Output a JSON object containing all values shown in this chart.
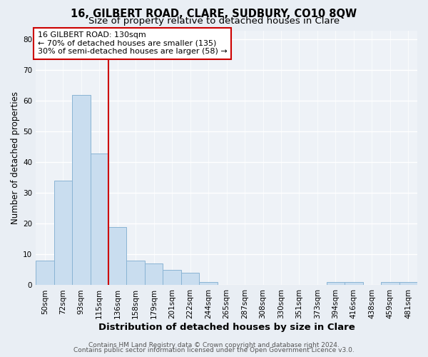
{
  "title": "16, GILBERT ROAD, CLARE, SUDBURY, CO10 8QW",
  "subtitle": "Size of property relative to detached houses in Clare",
  "xlabel": "Distribution of detached houses by size in Clare",
  "ylabel": "Number of detached properties",
  "bar_labels": [
    "50sqm",
    "72sqm",
    "93sqm",
    "115sqm",
    "136sqm",
    "158sqm",
    "179sqm",
    "201sqm",
    "222sqm",
    "244sqm",
    "265sqm",
    "287sqm",
    "308sqm",
    "330sqm",
    "351sqm",
    "373sqm",
    "394sqm",
    "416sqm",
    "438sqm",
    "459sqm",
    "481sqm"
  ],
  "bar_values": [
    8,
    34,
    62,
    43,
    19,
    8,
    7,
    5,
    4,
    1,
    0,
    0,
    0,
    0,
    0,
    0,
    1,
    1,
    0,
    1,
    1
  ],
  "bar_color": "#c9ddef",
  "bar_edgecolor": "#8ab4d4",
  "vline_color": "#cc0000",
  "annotation_text": "16 GILBERT ROAD: 130sqm\n← 70% of detached houses are smaller (135)\n30% of semi-detached houses are larger (58) →",
  "annotation_box_facecolor": "#ffffff",
  "annotation_box_edgecolor": "#cc0000",
  "ylim": [
    0,
    83
  ],
  "yticks": [
    0,
    10,
    20,
    30,
    40,
    50,
    60,
    70,
    80
  ],
  "bg_color": "#e9eef4",
  "plot_bg_color": "#eef2f7",
  "grid_color": "#ffffff",
  "footer_line1": "Contains HM Land Registry data © Crown copyright and database right 2024.",
  "footer_line2": "Contains public sector information licensed under the Open Government Licence v3.0.",
  "title_fontsize": 10.5,
  "subtitle_fontsize": 9.5,
  "xlabel_fontsize": 9.5,
  "ylabel_fontsize": 8.5,
  "tick_fontsize": 7.5,
  "annotation_fontsize": 8,
  "footer_fontsize": 6.5
}
